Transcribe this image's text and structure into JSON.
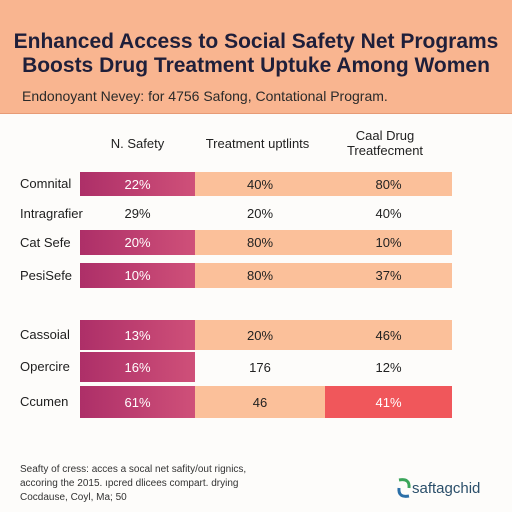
{
  "header": {
    "title": [
      "Enhanced Access to Social Safety Net Programs",
      "Boosts Drug Treatment Uptuke Among Women"
    ],
    "subtitle": "Endonoyant Nevey: for 4756 Safong, Contational Program."
  },
  "table": {
    "columns": [
      "N. Safety",
      "Treatment uptlints",
      "Caal Drug Treatfecment"
    ],
    "rows": [
      [
        "Comnital",
        "22%",
        "40%",
        "80%"
      ],
      [
        "Intragrafier",
        "29%",
        "20%",
        "40%"
      ],
      [
        "Cat Sefe",
        "20%",
        "80%",
        "10%"
      ],
      [
        "PesiSefe",
        "10%",
        "80%",
        "37%"
      ],
      [
        "Cassoial",
        "13%",
        "20%",
        "46%"
      ],
      [
        "Opercire",
        "16%",
        "176",
        "12%"
      ],
      [
        "Ccumen",
        "61%",
        "46",
        "41%"
      ]
    ]
  },
  "footer": {
    "lines": [
      "Seafty of cress: acces a socal net safity/out rignics,",
      "accoring the 2015. ıpcred dlicees compart. drying",
      "Cocdause, Coyl, Ma; 50"
    ],
    "logo": "saftagchid"
  }
}
